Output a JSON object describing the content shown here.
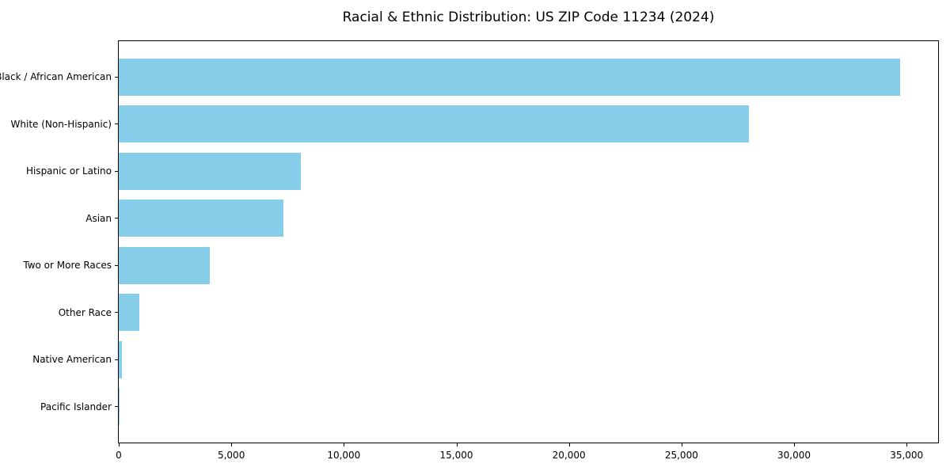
{
  "chart_data": {
    "type": "bar",
    "orientation": "horizontal",
    "title": "Racial & Ethnic Distribution: US ZIP Code 11234 (2024)",
    "categories": [
      "Black / African American",
      "White (Non-Hispanic)",
      "Hispanic or Latino",
      "Asian",
      "Two or More Races",
      "Other Race",
      "Native American",
      "Pacific Islander"
    ],
    "values": [
      34700,
      28000,
      8100,
      7300,
      4050,
      900,
      130,
      30
    ],
    "xlabel": "",
    "ylabel": "",
    "xlim": [
      0,
      36400
    ],
    "xticks": [
      0,
      5000,
      10000,
      15000,
      20000,
      25000,
      30000,
      35000
    ],
    "xtick_labels": [
      "0",
      "5,000",
      "10,000",
      "15,000",
      "20,000",
      "25,000",
      "30,000",
      "35,000"
    ],
    "bar_color": "#87CEEB",
    "axis_color": "#000000",
    "grid": false,
    "legend": null
  }
}
